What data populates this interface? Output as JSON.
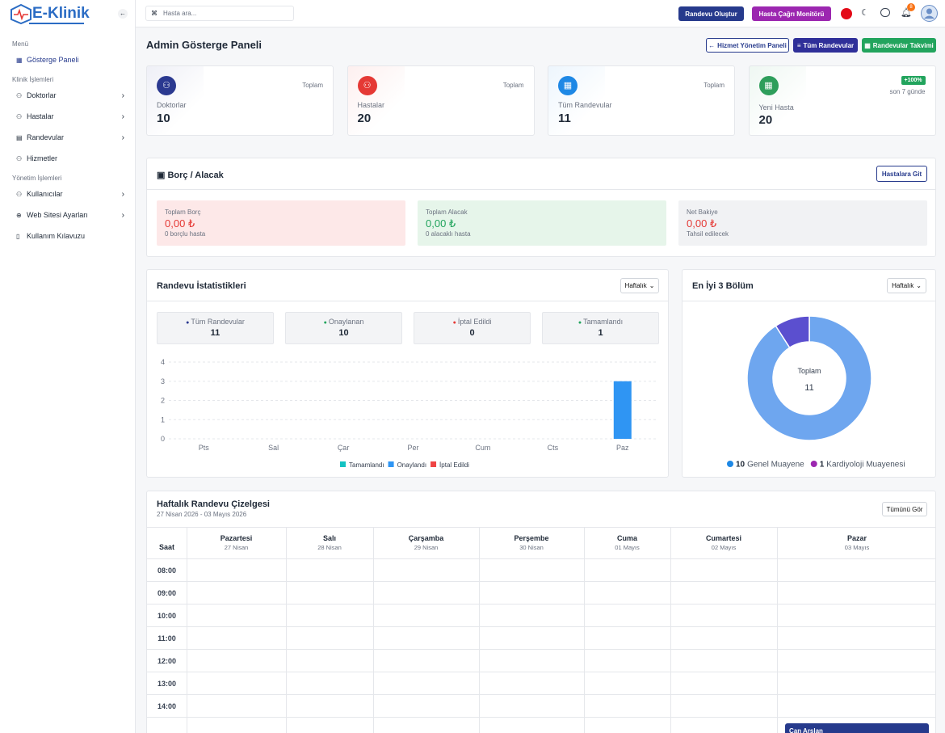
{
  "brand": "E-Klinik",
  "search_placeholder": "Hasta ara...",
  "topbar": {
    "buttons": [
      "Randevu Oluştur",
      "Hasta Çağrı Monitörü"
    ],
    "notification_count": 8
  },
  "sidebar": {
    "sections": [
      {
        "title": "Menü",
        "items": [
          "Gösterge Paneli"
        ]
      },
      {
        "title": "Klinik İşlemleri",
        "items": [
          "Doktorlar",
          "Hastalar",
          "Randevular",
          "Hizmetler"
        ]
      },
      {
        "title": "Yönetim İşlemleri",
        "items": [
          "Kullanıcılar",
          "Web Sitesi Ayarları",
          "Kullanım Kılavuzu"
        ]
      }
    ]
  },
  "header": {
    "title": "Admin Gösterge Paneli",
    "actions": [
      "Hizmet Yönetim Paneli",
      "Tüm Randevular",
      "Randevular Takvimi"
    ]
  },
  "stat_cards": [
    {
      "label": "Doktorlar",
      "caption": "Toplam",
      "value": "10"
    },
    {
      "label": "Hastalar",
      "caption": "Toplam",
      "value": "20"
    },
    {
      "label": "Tüm Randevular",
      "caption": "Toplam",
      "value": "11"
    },
    {
      "label": "Yeni Hasta",
      "caption": "son 7 günde",
      "value": "20",
      "badge": "+100%"
    }
  ],
  "debt": {
    "title": "Borç / Alacak",
    "button": "Hastalara Git",
    "boxes": [
      {
        "label": "Toplam Borç",
        "amount": "0,00 ₺",
        "note": "0 borçlu hasta"
      },
      {
        "label": "Toplam Alacak",
        "amount": "0,00 ₺",
        "note": "0 alacaklı hasta"
      },
      {
        "label": "Net Bakiye",
        "amount": "0,00 ₺",
        "note": "Tahsil edilecek"
      }
    ]
  },
  "appointment_stats": {
    "title": "Randevu İstatistikleri",
    "filter": "Haftalık",
    "summary": [
      {
        "label": "Tüm Randevular",
        "value": "11"
      },
      {
        "label": "Onaylanan",
        "value": "10"
      },
      {
        "label": "İptal Edildi",
        "value": "0"
      },
      {
        "label": "Tamamlandı",
        "value": "1"
      }
    ]
  },
  "departments": {
    "title": "En İyi 3 Bölüm",
    "filter": "Haftalık",
    "center_label": "Toplam",
    "center_value": "11"
  },
  "chart_data": [
    {
      "type": "bar",
      "categories": [
        "Pts",
        "Sal",
        "Çar",
        "Per",
        "Cum",
        "Cts",
        "Paz"
      ],
      "series": [
        {
          "name": "Tamamlandı",
          "color": "#13c2c2",
          "values": [
            0,
            0,
            0,
            0,
            0,
            0,
            0
          ]
        },
        {
          "name": "Onaylandı",
          "color": "#2f95f3",
          "values": [
            0,
            0,
            0,
            0,
            0,
            0,
            3
          ]
        },
        {
          "name": "İptal Edildi",
          "color": "#ef4444",
          "values": [
            0,
            0,
            0,
            0,
            0,
            0,
            0
          ]
        }
      ],
      "ylim": [
        0,
        4
      ],
      "yticks": [
        0,
        1,
        2,
        3,
        4
      ],
      "grid": true,
      "legend": "bottom"
    },
    {
      "type": "pie",
      "categories": [
        "Genel Muayene",
        "Kardiyoloji Muayenesi"
      ],
      "values": [
        10,
        1
      ],
      "colors": [
        "#6ea6ef",
        "#5b4fcf"
      ],
      "legend": "bottom"
    }
  ],
  "calendar": {
    "title": "Haftalık Randevu Çizelgesi",
    "subtitle": "27 Nisan 2026 - 03 Mayıs 2026",
    "button": "Tümünü Gör",
    "time_header": "Saat",
    "days": [
      {
        "name": "Pazartesi",
        "date": "27 Nisan"
      },
      {
        "name": "Salı",
        "date": "28 Nisan"
      },
      {
        "name": "Çarşamba",
        "date": "29 Nisan"
      },
      {
        "name": "Perşembe",
        "date": "30 Nisan"
      },
      {
        "name": "Cuma",
        "date": "01 Mayıs"
      },
      {
        "name": "Cumartesi",
        "date": "02 Mayıs"
      },
      {
        "name": "Pazar",
        "date": "03 Mayıs"
      }
    ],
    "hours": [
      "08:00",
      "09:00",
      "10:00",
      "11:00",
      "12:00",
      "13:00",
      "14:00"
    ],
    "event": "Can Arslan"
  }
}
